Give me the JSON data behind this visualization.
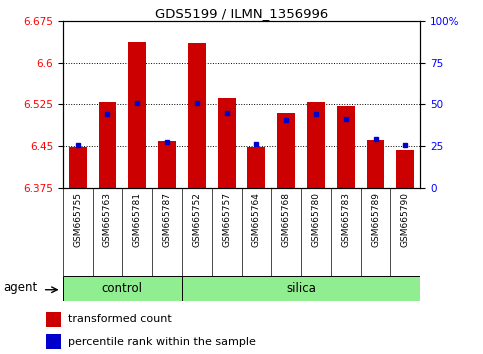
{
  "title": "GDS5199 / ILMN_1356996",
  "samples": [
    "GSM665755",
    "GSM665763",
    "GSM665781",
    "GSM665787",
    "GSM665752",
    "GSM665757",
    "GSM665764",
    "GSM665768",
    "GSM665780",
    "GSM665783",
    "GSM665789",
    "GSM665790"
  ],
  "groups": [
    "control",
    "control",
    "control",
    "control",
    "silica",
    "silica",
    "silica",
    "silica",
    "silica",
    "silica",
    "silica",
    "silica"
  ],
  "red_values": [
    6.448,
    6.53,
    6.638,
    6.459,
    6.635,
    6.537,
    6.448,
    6.51,
    6.53,
    6.523,
    6.46,
    6.443
  ],
  "blue_values": [
    6.452,
    6.508,
    6.527,
    6.457,
    6.527,
    6.51,
    6.453,
    6.497,
    6.508,
    6.499,
    6.462,
    6.452
  ],
  "y_min": 6.375,
  "y_max": 6.675,
  "y_ticks": [
    6.375,
    6.45,
    6.525,
    6.6,
    6.675
  ],
  "y2_ticks": [
    0,
    25,
    50,
    75,
    100
  ],
  "bar_base": 6.375,
  "red_color": "#cc0000",
  "blue_color": "#0000cc",
  "group_color": "#90EE90",
  "bg_color": "#cccccc",
  "bar_width": 0.6,
  "n_control": 4,
  "n_silica": 8
}
